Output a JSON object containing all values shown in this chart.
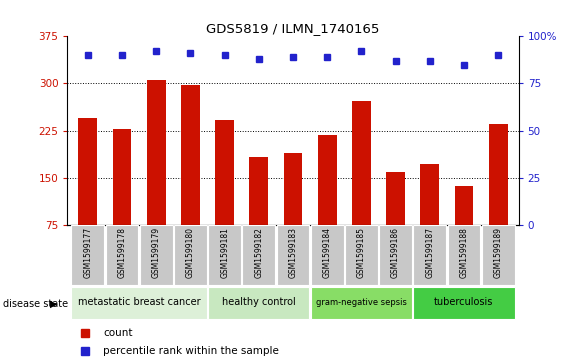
{
  "title": "GDS5819 / ILMN_1740165",
  "samples": [
    "GSM1599177",
    "GSM1599178",
    "GSM1599179",
    "GSM1599180",
    "GSM1599181",
    "GSM1599182",
    "GSM1599183",
    "GSM1599184",
    "GSM1599185",
    "GSM1599186",
    "GSM1599187",
    "GSM1599188",
    "GSM1599189"
  ],
  "counts": [
    245,
    228,
    305,
    297,
    242,
    183,
    190,
    218,
    272,
    160,
    172,
    137,
    235
  ],
  "percentile_ranks": [
    90,
    90,
    92,
    91,
    90,
    88,
    89,
    89,
    92,
    87,
    87,
    85,
    90
  ],
  "bar_color": "#cc1100",
  "dot_color": "#2222cc",
  "ylim_left": [
    75,
    375
  ],
  "ylim_right": [
    0,
    100
  ],
  "yticks_left": [
    75,
    150,
    225,
    300,
    375
  ],
  "yticks_right": [
    0,
    25,
    50,
    75,
    100
  ],
  "grid_values": [
    150,
    225,
    300
  ],
  "disease_groups": [
    {
      "label": "metastatic breast cancer",
      "start": 0,
      "end": 3,
      "color": "#ddf0d8"
    },
    {
      "label": "healthy control",
      "start": 4,
      "end": 6,
      "color": "#c8e8c0"
    },
    {
      "label": "gram-negative sepsis",
      "start": 7,
      "end": 9,
      "color": "#88dd66"
    },
    {
      "label": "tuberculosis",
      "start": 10,
      "end": 12,
      "color": "#44cc44"
    }
  ],
  "background_color": "#ffffff",
  "tick_bg_color": "#c8c8c8"
}
